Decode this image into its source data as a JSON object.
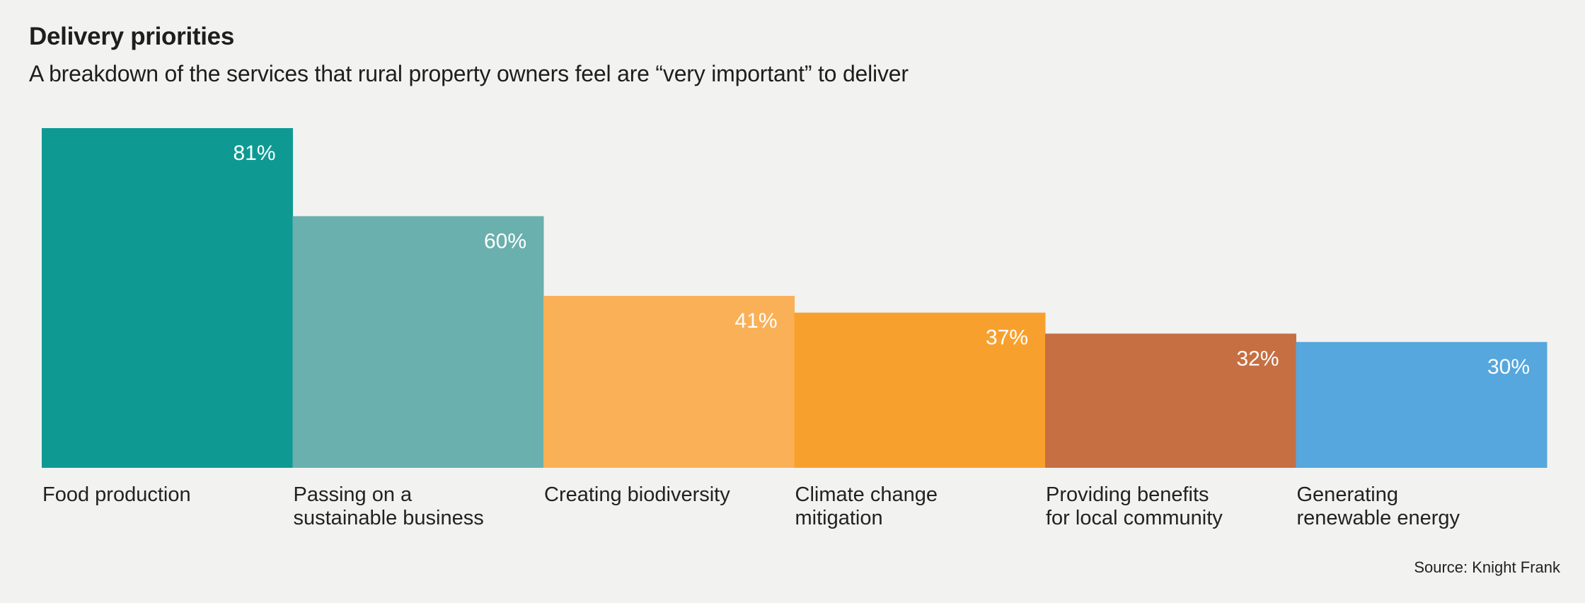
{
  "header": {
    "title": "Delivery priorities",
    "subtitle": "A breakdown of the services that rural property owners feel are “very important” to deliver"
  },
  "footer": {
    "source": "Source: Knight Frank"
  },
  "chart_data": {
    "type": "bar",
    "title": "Delivery priorities",
    "subtitle": "A breakdown of the services that rural property owners feel are “very important” to deliver",
    "xlabel": "",
    "ylabel": "",
    "ylim": [
      0,
      81
    ],
    "grid": false,
    "legend": "none",
    "unit": "%",
    "categories": [
      [
        "Food production"
      ],
      [
        "Passing on a",
        "sustainable business"
      ],
      [
        "Creating biodiversity"
      ],
      [
        "Climate change",
        "mitigation"
      ],
      [
        "Providing benefits",
        "for local community"
      ],
      [
        "Generating",
        "renewable energy"
      ]
    ],
    "values": [
      81,
      60,
      41,
      37,
      32,
      30
    ],
    "value_labels": [
      "81%",
      "60%",
      "41%",
      "37%",
      "32%",
      "30%"
    ],
    "colors": [
      "#0e9a93",
      "#6ab0ae",
      "#fab057",
      "#f8a02e",
      "#c66f42",
      "#55a7dd"
    ],
    "source": "Source: Knight Frank"
  }
}
